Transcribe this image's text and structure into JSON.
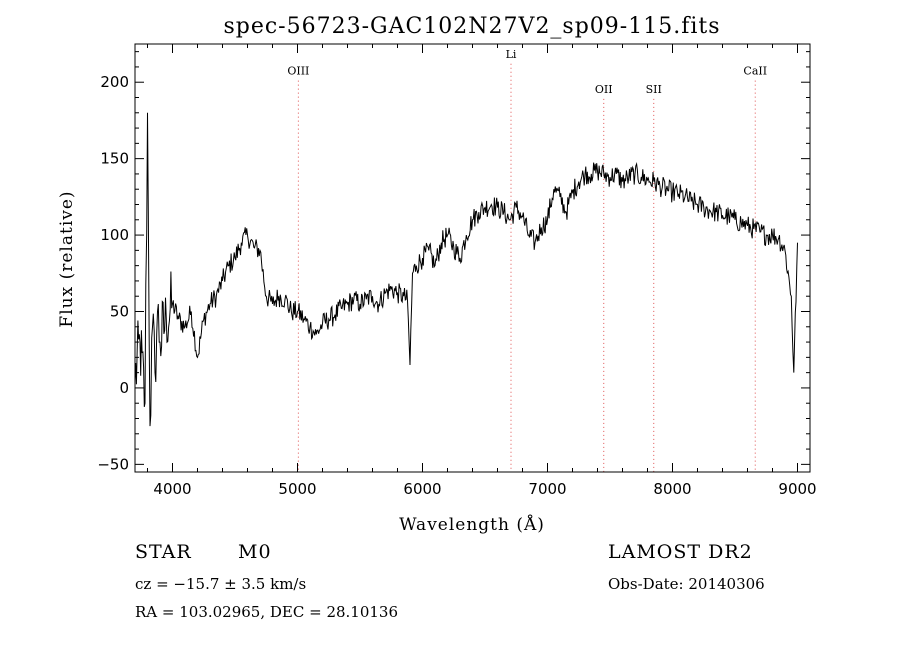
{
  "chart_data": {
    "type": "line",
    "title": "spec-56723-GAC102N27V2_sp09-115.fits",
    "xlabel": "Wavelength (Å)",
    "ylabel": "Flux (relative)",
    "xlim": [
      3700,
      9100
    ],
    "ylim": [
      -55,
      225
    ],
    "xticks": [
      "4000",
      "5000",
      "6000",
      "7000",
      "8000",
      "9000"
    ],
    "xtick_values": [
      4000,
      5000,
      6000,
      7000,
      8000,
      9000
    ],
    "yticks": [
      "−50",
      "0",
      "50",
      "100",
      "150",
      "200"
    ],
    "ytick_values": [
      -50,
      0,
      50,
      100,
      150,
      200
    ],
    "grid": false,
    "line_color": "#000000",
    "marker_color": "#e05050",
    "lines": [
      {
        "name": "OIII",
        "wavelength": 5007,
        "label_y": 205
      },
      {
        "name": "Li",
        "wavelength": 6708,
        "label_y": 216
      },
      {
        "name": "OII",
        "wavelength": 7450,
        "label_y": 193
      },
      {
        "name": "SII",
        "wavelength": 7850,
        "label_y": 193
      },
      {
        "name": "CaII",
        "wavelength": 8662,
        "label_y": 205
      }
    ],
    "series": [
      {
        "x": [
          3700,
          3740,
          3780,
          3800,
          3820,
          3840,
          3860,
          3880,
          3900,
          3950,
          4000,
          4050,
          4100,
          4150,
          4200,
          4250,
          4300,
          4350,
          4400,
          4450,
          4500,
          4550,
          4600,
          4650,
          4700,
          4750,
          4800,
          4850,
          4900,
          4950,
          5000,
          5050,
          5100,
          5150,
          5200,
          5250,
          5300,
          5350,
          5400,
          5450,
          5500,
          5550,
          5600,
          5650,
          5700,
          5750,
          5800,
          5850,
          5880,
          5900,
          5920,
          5950,
          6000,
          6050,
          6100,
          6150,
          6200,
          6250,
          6300,
          6350,
          6400,
          6450,
          6500,
          6550,
          6600,
          6650,
          6700,
          6750,
          6800,
          6850,
          6900,
          6950,
          7000,
          7050,
          7100,
          7150,
          7200,
          7250,
          7300,
          7350,
          7400,
          7450,
          7500,
          7550,
          7600,
          7650,
          7700,
          7750,
          7800,
          7850,
          7900,
          7950,
          8000,
          8050,
          8100,
          8150,
          8200,
          8250,
          8300,
          8350,
          8400,
          8450,
          8500,
          8550,
          8600,
          8650,
          8700,
          8750,
          8800,
          8850,
          8900,
          8950,
          8970,
          9000
        ],
        "y": [
          5,
          30,
          -10,
          180,
          -25,
          40,
          10,
          50,
          30,
          45,
          55,
          45,
          40,
          50,
          20,
          45,
          55,
          60,
          70,
          80,
          85,
          95,
          100,
          92,
          90,
          60,
          55,
          60,
          58,
          50,
          50,
          45,
          40,
          35,
          42,
          45,
          48,
          52,
          55,
          58,
          55,
          58,
          60,
          55,
          62,
          65,
          62,
          60,
          57,
          15,
          75,
          80,
          85,
          90,
          80,
          95,
          100,
          92,
          85,
          100,
          110,
          115,
          118,
          120,
          118,
          115,
          110,
          118,
          112,
          100,
          95,
          105,
          110,
          130,
          125,
          115,
          128,
          135,
          140,
          140,
          142,
          140,
          138,
          140,
          135,
          138,
          140,
          138,
          136,
          135,
          132,
          130,
          128,
          127,
          125,
          122,
          120,
          118,
          116,
          115,
          113,
          112,
          110,
          108,
          106,
          104,
          102,
          100,
          100,
          98,
          90,
          60,
          10,
          95
        ]
      }
    ],
    "annotations": {
      "object_class": "STAR",
      "subclass": "M0",
      "redshift": "cz = −15.7 ± 3.5 km/s",
      "coords": "RA = 103.02965, DEC =  28.10136",
      "survey": "LAMOST DR2",
      "obs_date": "Obs-Date: 20140306"
    }
  }
}
